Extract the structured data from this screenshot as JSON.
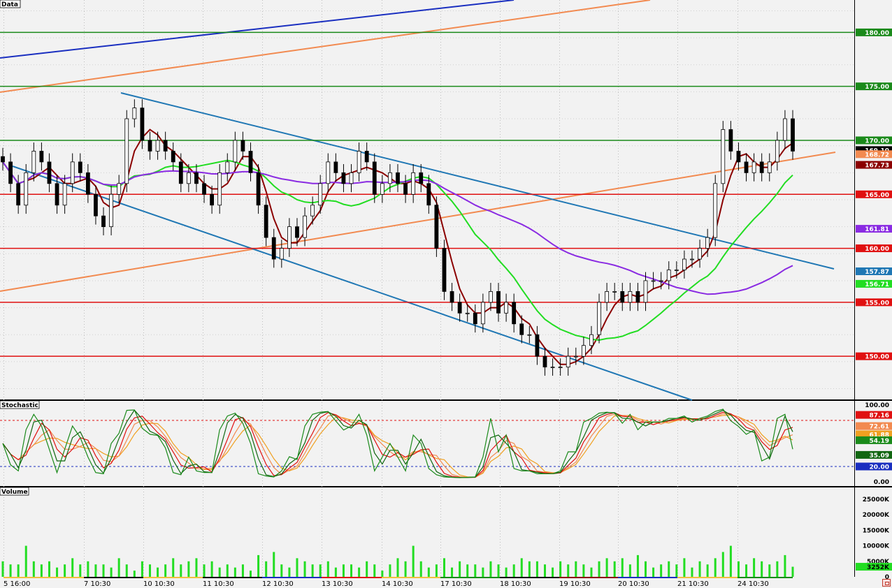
{
  "panels": {
    "price_title": "Data",
    "stochastic_title": "Stochastic",
    "volume_title": "Volume"
  },
  "chart_data": [
    {
      "type": "candlestick",
      "panel": "Data",
      "ylim": [
        146,
        183
      ],
      "grid": true,
      "time_labels": [
        "5 16:00",
        "7 10:30",
        "10 10:30",
        "11 10:30",
        "12 10:30",
        "13 10:30",
        "14 10:30",
        "17 10:30",
        "18 10:30",
        "19 10:30",
        "20 10:30",
        "21 10:30",
        "24 10:30"
      ],
      "close_series": [
        168,
        166,
        164,
        167,
        169,
        168,
        166,
        164,
        166,
        168,
        167,
        165,
        163,
        162,
        165,
        166,
        172,
        173,
        170,
        169,
        170,
        169,
        168,
        166,
        167,
        166,
        165,
        164,
        167,
        168,
        170,
        169,
        167,
        164,
        161,
        159,
        160,
        162,
        161,
        163,
        164,
        166,
        168,
        167,
        166,
        167,
        169,
        168,
        165,
        166,
        167,
        166,
        165,
        167,
        166,
        164,
        160,
        156,
        155,
        154,
        154,
        153,
        155,
        156,
        154,
        155,
        153,
        152,
        152,
        150,
        149,
        149,
        149,
        150,
        150,
        151,
        152,
        155,
        156,
        156,
        155,
        156,
        155,
        157,
        157,
        157,
        158,
        158,
        159,
        159,
        160,
        161,
        166,
        171,
        169,
        168,
        167,
        168,
        167,
        168,
        170,
        172,
        169
      ],
      "moving_averages": [
        {
          "color": "#8b0000",
          "last_value": 167.73
        },
        {
          "color": "#22dd22",
          "last_value": 156.71
        },
        {
          "color": "#8a2be2",
          "last_value": 161.81
        }
      ],
      "horizontal_levels": [
        {
          "value": 180.0,
          "label": "180.00",
          "color": "#1a8a1a"
        },
        {
          "value": 175.0,
          "label": "175.00",
          "color": "#1a8a1a"
        },
        {
          "value": 170.0,
          "label": "170.00",
          "color": "#1a8a1a"
        },
        {
          "value": 165.0,
          "label": "165.00",
          "color": "#e01010"
        },
        {
          "value": 160.0,
          "label": "160.00",
          "color": "#e01010"
        },
        {
          "value": 155.0,
          "label": "155.00",
          "color": "#e01010"
        },
        {
          "value": 150.0,
          "label": "150.00",
          "color": "#e01010"
        }
      ],
      "value_tags": [
        {
          "value": 169.1,
          "label": "169.10",
          "color": "#000000"
        },
        {
          "value": 168.72,
          "label": "168.72",
          "color": "#f28a50"
        },
        {
          "value": 167.73,
          "label": "167.73",
          "color": "#8b0000"
        },
        {
          "value": 161.81,
          "label": "161.81",
          "color": "#8a2be2"
        },
        {
          "value": 157.87,
          "label": "157.87",
          "color": "#1f77b4"
        },
        {
          "value": 156.71,
          "label": "156.71",
          "color": "#22dd22"
        }
      ],
      "trendline_colors": {
        "blue": "#1f77b4",
        "orange": "#f28a50",
        "navy": "#1a2fc0"
      }
    },
    {
      "type": "line",
      "panel": "Stochastic",
      "ylim": [
        0,
        100
      ],
      "ticks": [
        "100.00",
        "0.00"
      ],
      "series": [
        {
          "color": "#e01010",
          "last_value": 87.16
        },
        {
          "color": "#f28a50",
          "last_value": 72.61
        },
        {
          "color": "#f0a020",
          "last_value": 61.88
        },
        {
          "color": "#1a8a1a",
          "last_value": 54.19
        },
        {
          "color": "#116611",
          "last_value": 35.09
        }
      ],
      "levels": [
        {
          "value": 80,
          "color": "#e01010"
        },
        {
          "value": 20.0,
          "label": "20.00",
          "color": "#1a2fc0"
        }
      ]
    },
    {
      "type": "bar",
      "panel": "Volume",
      "ylim": [
        0,
        27000
      ],
      "ticks": [
        "25000K",
        "20000K",
        "15000K",
        "10000K",
        "5000K",
        "0"
      ],
      "last_value_label": "3252K",
      "bar_color": "#22dd22",
      "values": [
        5,
        4,
        4,
        10,
        5,
        4,
        5,
        3,
        4,
        6,
        4,
        5,
        4,
        4,
        3,
        6,
        4,
        2,
        5,
        4,
        3,
        4,
        6,
        4,
        5,
        6,
        4,
        5,
        3,
        4,
        3,
        4,
        2,
        7,
        5,
        8,
        4,
        3,
        6,
        5,
        4,
        4,
        5,
        3,
        4,
        4,
        3,
        5,
        4,
        2,
        4,
        6,
        5,
        10,
        5,
        3,
        4,
        6,
        3,
        5,
        4,
        4,
        3,
        5,
        4,
        3,
        4,
        6,
        5,
        5,
        4,
        3,
        5,
        4,
        5,
        4,
        3,
        5,
        6,
        5,
        6,
        4,
        7,
        5,
        3,
        4,
        5,
        4,
        6,
        3,
        5,
        4,
        6,
        8,
        10,
        5,
        4,
        6,
        5,
        4,
        5,
        7,
        3.25
      ]
    }
  ]
}
